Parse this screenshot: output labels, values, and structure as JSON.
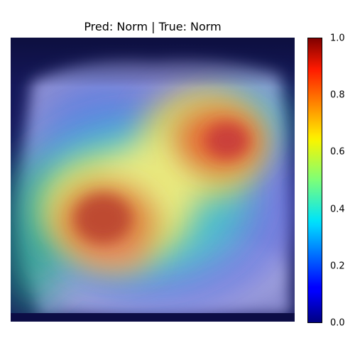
{
  "title": "Pred: Norm | True: Norm",
  "colorbar": {
    "colormap": "jet",
    "ticks": [
      "0.0",
      "0.2",
      "0.4",
      "0.6",
      "0.8",
      "1.0"
    ]
  }
}
